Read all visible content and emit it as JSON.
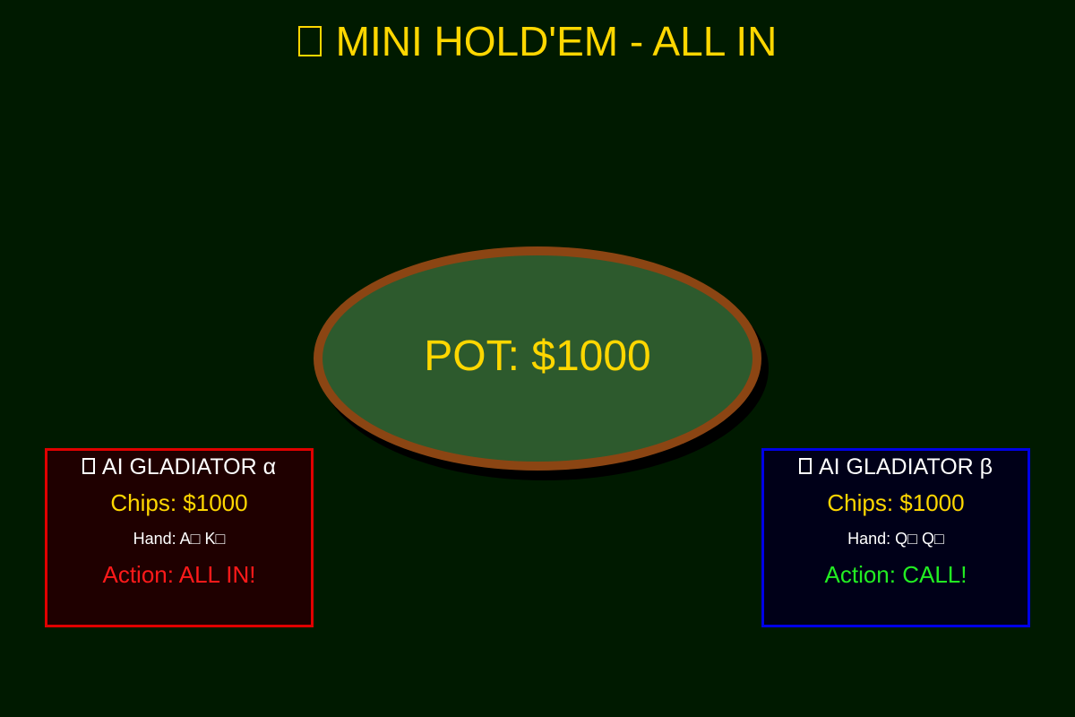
{
  "game": {
    "title": "□ MINI HOLD'EM - ALL IN",
    "title_icon": "missing-glyph-icon",
    "title_text": "MINI HOLD'EM - ALL IN"
  },
  "table": {
    "pot_label": "POT: $1000",
    "felt_color": "#2d5a2d",
    "rail_color": "#8b4513"
  },
  "players": [
    {
      "name": "AI GLADIATOR α",
      "icon": "missing-glyph-icon",
      "chips": "Chips: $1000",
      "hand": "Hand: A□ K□",
      "action": "Action: ALL IN!",
      "border_color": "#e00000"
    },
    {
      "name": "AI GLADIATOR β",
      "icon": "missing-glyph-icon",
      "chips": "Chips: $1000",
      "hand": "Hand: Q□ Q□",
      "action": "Action: CALL!",
      "border_color": "#0000e6"
    }
  ],
  "colors": {
    "background": "#001a00",
    "gold": "#ffd700"
  }
}
